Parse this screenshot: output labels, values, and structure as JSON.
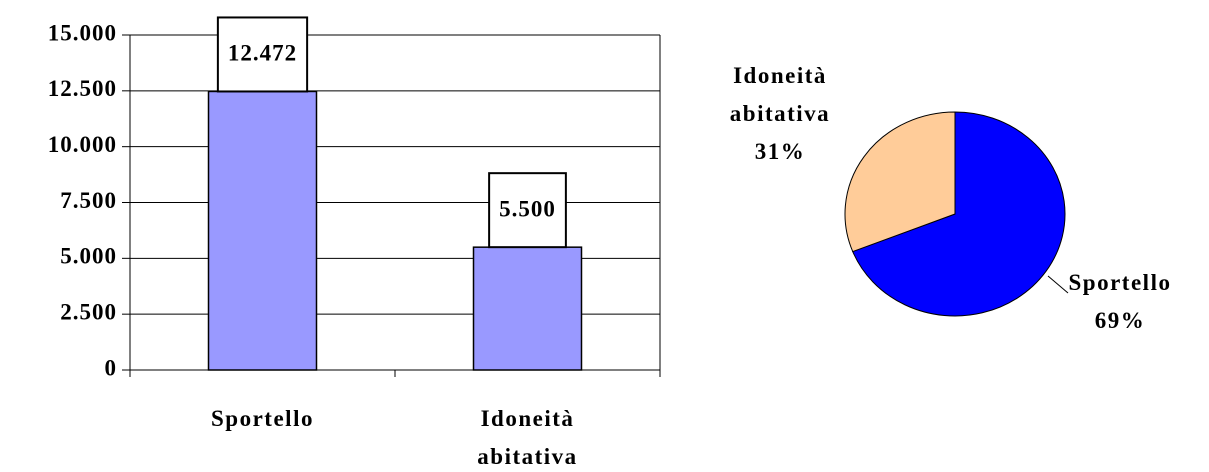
{
  "chart_data": [
    {
      "type": "bar",
      "categories": [
        "Sportello",
        "Idoneità abitativa"
      ],
      "values": [
        12472,
        5500
      ],
      "value_labels": [
        "12.472",
        "5.500"
      ],
      "color": "#9999ff",
      "ylim": [
        0,
        15000
      ],
      "yticks": [
        0,
        {
          "value": 2500,
          "label": "2.500"
        },
        {
          "value": 5000,
          "label": "5.000"
        },
        {
          "value": 7500,
          "label": "7.500"
        },
        {
          "value": 10000,
          "label": "10.000"
        },
        {
          "value": 12500,
          "label": "12.500"
        },
        {
          "value": 15000,
          "label": "15.000"
        }
      ],
      "grid": true
    },
    {
      "type": "pie",
      "categories": [
        "Sportello",
        "Idoneità abitativa"
      ],
      "values": [
        69,
        31
      ],
      "value_labels": [
        "69%",
        "31%"
      ],
      "colors": [
        "#0000ff",
        "#ffcc99"
      ]
    }
  ]
}
